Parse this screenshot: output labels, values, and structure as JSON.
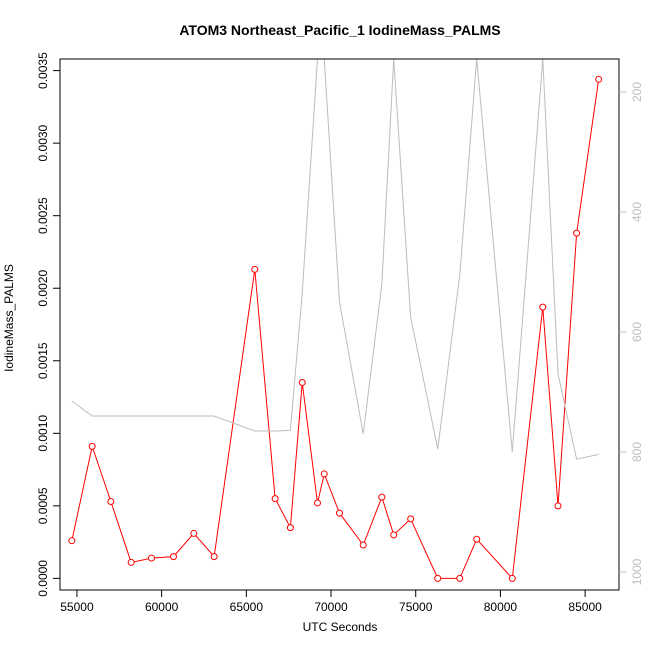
{
  "chart_data": {
    "type": "line",
    "title": "ATOM3 Northeast_Pacific_1 IodineMass_PALMS",
    "xlabel": "UTC Seconds",
    "ylabel": "IodineMass_PALMS",
    "xlim": [
      54000,
      87000
    ],
    "ylim": [
      -8e-05,
      0.00358
    ],
    "x_ticks": [
      55000,
      60000,
      65000,
      70000,
      75000,
      80000,
      85000
    ],
    "x_tick_labels": [
      "55000",
      "60000",
      "65000",
      "70000",
      "75000",
      "80000",
      "85000"
    ],
    "y_ticks": [
      0.0,
      0.0005,
      0.001,
      0.0015,
      0.002,
      0.0025,
      0.003,
      0.0035
    ],
    "y_tick_labels": [
      "0.0000",
      "0.0005",
      "0.0010",
      "0.0015",
      "0.0020",
      "0.0025",
      "0.0030",
      "0.0035"
    ],
    "y2lim": [
      1030,
      145
    ],
    "y2_ticks": [
      200,
      400,
      600,
      800,
      1000
    ],
    "y2_tick_labels": [
      "200",
      "400",
      "600",
      "800",
      "1000"
    ],
    "grid": false,
    "series": [
      {
        "color": "#ff0000",
        "marker": "open-circle",
        "axis": "left",
        "x": [
          54700,
          55900,
          57000,
          58200,
          59400,
          60700,
          61900,
          63100,
          65500,
          66700,
          67600,
          68300,
          69200,
          69600,
          70500,
          71900,
          73000,
          73700,
          74700,
          76300,
          77600,
          78600,
          80700,
          82500,
          83400,
          84500,
          85800
        ],
        "values": [
          0.00026,
          0.00091,
          0.00053,
          0.00011,
          0.00014,
          0.00015,
          0.00031,
          0.00015,
          0.00213,
          0.00055,
          0.00035,
          0.00135,
          0.00052,
          0.00072,
          0.00045,
          0.00023,
          0.00056,
          0.0003,
          0.00041,
          0.0,
          0.0,
          0.00027,
          0.0,
          0.00187,
          0.0005,
          0.00238,
          0.00344
        ]
      },
      {
        "color": "#bdbdbd",
        "marker": "none",
        "axis": "right",
        "x": [
          54700,
          55900,
          57000,
          58200,
          59400,
          60700,
          61900,
          63100,
          65500,
          66700,
          67600,
          68300,
          69200,
          69600,
          70500,
          71900,
          73000,
          73700,
          74700,
          76300,
          77600,
          78600,
          80700,
          82500,
          83400,
          84500,
          85800
        ],
        "values": [
          715,
          740,
          740,
          740,
          740,
          740,
          740,
          740,
          765,
          765,
          764,
          535,
          145,
          145,
          550,
          770,
          520,
          145,
          575,
          795,
          505,
          145,
          800,
          145,
          670,
          812,
          804
        ]
      }
    ]
  }
}
